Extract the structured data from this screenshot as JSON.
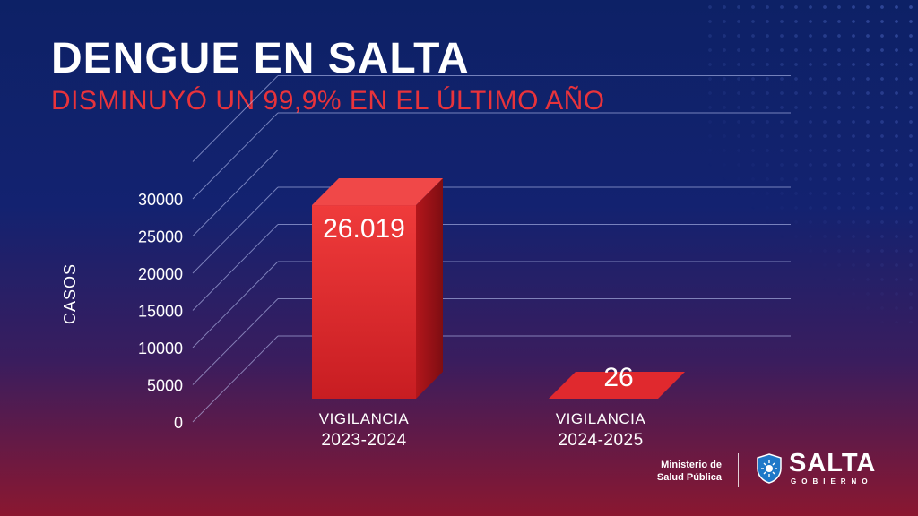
{
  "header": {
    "title": "DENGUE EN SALTA",
    "subtitle": "DISMINUYÓ UN 99,9% EN EL ÚLTIMO AÑO"
  },
  "footer": {
    "ministry_line1": "Ministerio de",
    "ministry_line2": "Salud Pública",
    "brand_name": "SALTA",
    "brand_sub": "GOBIERNO"
  },
  "colors": {
    "accent_red": "#e8333b",
    "bar_red": "#e02a2a",
    "background_top": "#0d2166",
    "background_bottom": "#8a1730"
  },
  "chart_data": {
    "type": "bar",
    "title": "DENGUE EN SALTA",
    "subtitle": "DISMINUYÓ UN 99,9% EN EL ÚLTIMO AÑO",
    "ylabel": "CASOS",
    "xlabel": "",
    "ylim": [
      0,
      35000
    ],
    "yticks": [
      "0",
      "5000",
      "10000",
      "15000",
      "20000",
      "25000",
      "30000"
    ],
    "ytick_values": [
      0,
      5000,
      10000,
      15000,
      20000,
      25000,
      30000
    ],
    "categories": [
      [
        "VIGILANCIA",
        "2023-2024"
      ],
      [
        "VIGILANCIA",
        "2024-2025"
      ]
    ],
    "values": [
      26019,
      26
    ],
    "value_labels": [
      "26.019",
      "26"
    ],
    "grid": true,
    "style": "3d"
  }
}
